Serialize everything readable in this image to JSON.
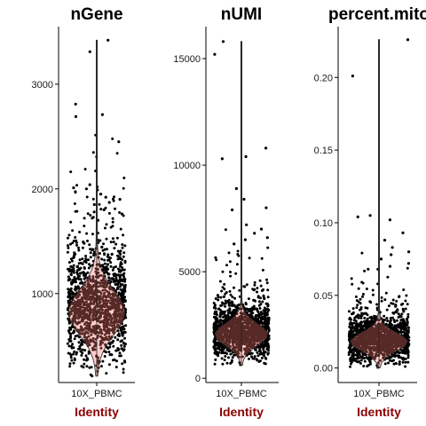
{
  "colors": {
    "violin": "#F8766D",
    "points": "#000000",
    "axis_title": "#8B0000"
  },
  "chart_data": [
    {
      "type": "violin",
      "title": "nGene",
      "xlabel": "Identity",
      "categories": [
        "10X_PBMC"
      ],
      "yticks": [
        1000,
        2000,
        3000
      ],
      "ylim": [
        150,
        3550
      ],
      "median": 820,
      "range": [
        210,
        3420
      ],
      "outliers": [
        3420,
        3310,
        2810,
        2710,
        2690,
        2450,
        2040,
        2010,
        2000,
        1990,
        1950,
        1920,
        1900,
        1870,
        1850,
        1800,
        1780,
        1760,
        1720,
        1700
      ]
    },
    {
      "type": "violin",
      "title": "nUMI",
      "xlabel": "Identity",
      "categories": [
        "10X_PBMC"
      ],
      "yticks": [
        0,
        5000,
        10000,
        15000
      ],
      "ylim": [
        -200,
        16500
      ],
      "median": 2050,
      "range": [
        600,
        15800
      ],
      "outliers": [
        15800,
        15200,
        10800,
        10400,
        10300,
        8900,
        8400,
        8000,
        7900,
        7200,
        7000,
        6800,
        6600,
        6500,
        6300
      ]
    },
    {
      "type": "violin",
      "title": "percent.mito",
      "xlabel": "Identity",
      "categories": [
        "10X_PBMC"
      ],
      "yticks": [
        0.0,
        0.05,
        0.1,
        0.15,
        0.2
      ],
      "ylim": [
        -0.01,
        0.235
      ],
      "median": 0.018,
      "range": [
        0.0,
        0.226
      ],
      "outliers": [
        0.226,
        0.201,
        0.105,
        0.104,
        0.102,
        0.093,
        0.088,
        0.083,
        0.08,
        0.078,
        0.075,
        0.072,
        0.07,
        0.068
      ]
    }
  ]
}
